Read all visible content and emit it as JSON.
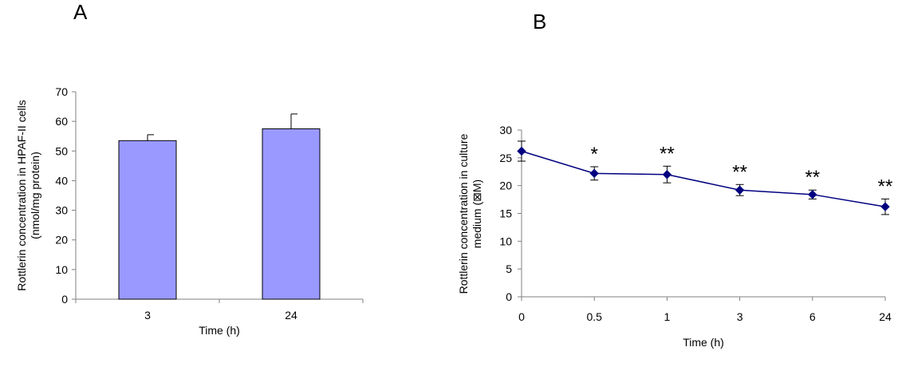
{
  "panel_labels": [
    "A",
    "B"
  ],
  "colors": {
    "bar_fill": "#9999ff",
    "line_series": "#000080",
    "axis": "#808080",
    "text": "#000000"
  },
  "chart_data": [
    {
      "type": "bar",
      "title": "",
      "categories": [
        "3",
        "24"
      ],
      "values": [
        53.5,
        57.5
      ],
      "errors": [
        2,
        5
      ],
      "xlabel": "Time (h)",
      "ylabel_lines": [
        "Rottlerin concentration in HPAF-II cells",
        "(nmol/mg protein)"
      ],
      "ylim": [
        0,
        70
      ],
      "yticks": [
        0,
        10,
        20,
        30,
        40,
        50,
        60,
        70
      ],
      "grid": false,
      "legend": "none"
    },
    {
      "type": "line",
      "title": "",
      "categories": [
        "0",
        "0.5",
        "1",
        "3",
        "6",
        "24"
      ],
      "values": [
        26.2,
        22.2,
        22.0,
        19.2,
        18.4,
        16.2
      ],
      "errors": [
        1.8,
        1.2,
        1.5,
        1.0,
        0.8,
        1.4
      ],
      "annotations": [
        "",
        "*",
        "**",
        "**",
        "**",
        "**"
      ],
      "xlabel": "Time (h)",
      "ylabel_lines": [
        "Rottlerin concentration in culture",
        "medium (⊠M)"
      ],
      "ylim": [
        0,
        30
      ],
      "yticks": [
        0,
        5,
        10,
        15,
        20,
        25,
        30
      ],
      "grid": false,
      "legend": "none"
    }
  ]
}
